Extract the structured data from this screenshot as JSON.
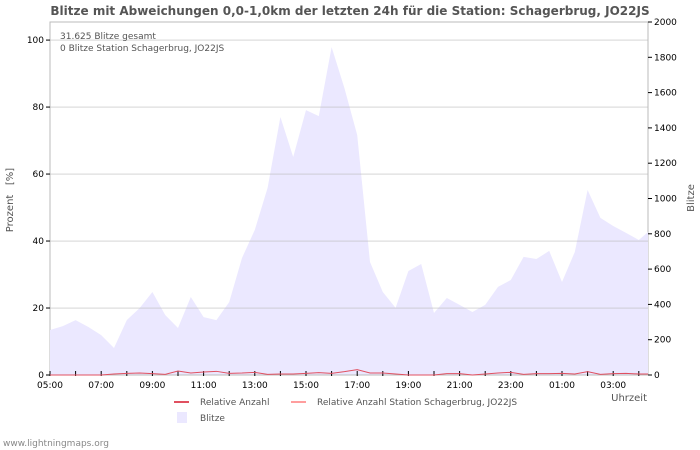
{
  "chart_data": {
    "type": "area",
    "title": "Blitze mit Abweichungen 0,0-1,0km der letzten 24h für die Station: Schagerbrug, JO22JS",
    "annotations": [
      "31.625 Blitze gesamt",
      "0 Blitze Station Schagerbrug, JO22JS"
    ],
    "ylabel_left": "Prozent   [%]",
    "ylabel_right": "Blitze",
    "xlabel": "Uhrzeit",
    "ylim_left": [
      0,
      105.4
    ],
    "ylim_right": [
      0,
      2000
    ],
    "left_ticks": [
      "0",
      "20",
      "40",
      "60",
      "80",
      "100"
    ],
    "right_ticks": [
      "0",
      "200",
      "400",
      "600",
      "800",
      "1000",
      "1200",
      "1400",
      "1600",
      "1800",
      "2000"
    ],
    "x_ticks": [
      "05:00",
      "07:00",
      "09:00",
      "11:00",
      "13:00",
      "15:00",
      "17:00",
      "19:00",
      "21:00",
      "23:00",
      "01:00",
      "03:00"
    ],
    "grid": true,
    "x_step_hours": 0.5,
    "series": [
      {
        "name": "Blitze",
        "axis": "right",
        "color": "#ebe8ff",
        "values": [
          255,
          277,
          311,
          272,
          226,
          153,
          311,
          379,
          470,
          340,
          266,
          442,
          328,
          311,
          413,
          663,
          822,
          1060,
          1462,
          1235,
          1501,
          1467,
          1858,
          1626,
          1360,
          640,
          470,
          380,
          589,
          629,
          351,
          436,
          397,
          357,
          397,
          499,
          538,
          669,
          657,
          703,
          527,
          697,
          1048,
          890,
          844,
          805,
          765,
          810
        ]
      },
      {
        "name": "Relative Anzahl",
        "axis": "left",
        "color": "#e05060",
        "values": [
          0,
          0,
          0,
          0,
          0,
          0.3,
          0.5,
          0.6,
          0.4,
          0.2,
          1.2,
          0.6,
          0.9,
          1.1,
          0.5,
          0.6,
          0.8,
          0.2,
          0.3,
          0.3,
          0.5,
          0.7,
          0.5,
          1.0,
          1.6,
          0.6,
          0.6,
          0.3,
          0,
          0,
          0,
          0.4,
          0.4,
          0,
          0.3,
          0.6,
          0.8,
          0.2,
          0.4,
          0.4,
          0.5,
          0.3,
          1.0,
          0.2,
          0.4,
          0.5,
          0.3,
          0.3
        ]
      },
      {
        "name": "Relative Anzahl Station Schagerbrug, JO22JS",
        "axis": "left",
        "color": "#ff9e9e",
        "values": []
      }
    ],
    "legend": [
      {
        "label": "Relative Anzahl",
        "color": "#e05060"
      },
      {
        "label": "Relative Anzahl Station Schagerbrug, JO22JS",
        "color": "#ff9e9e"
      },
      {
        "label": "Blitze",
        "color": "#ebe8ff"
      }
    ]
  },
  "footer": "www.lightningmaps.org"
}
